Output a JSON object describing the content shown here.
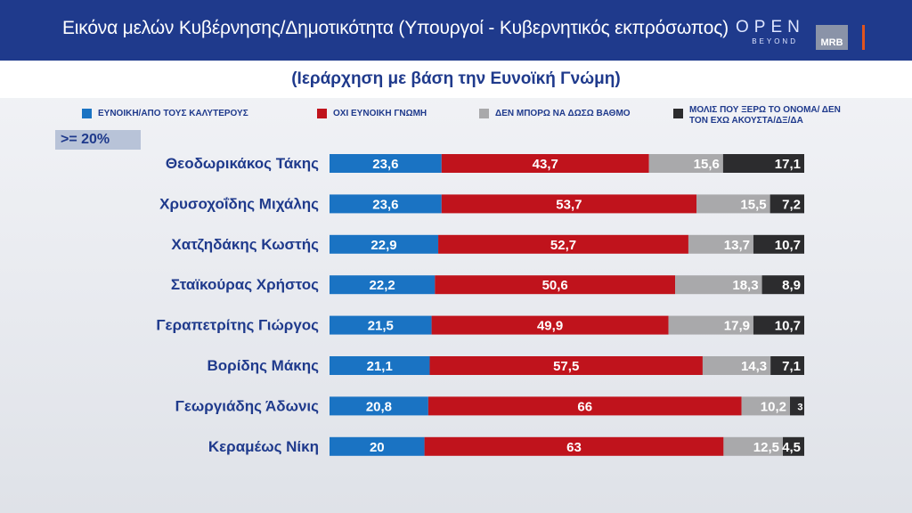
{
  "header": {
    "title": "Εικόνα μελών Κυβέρνησης/Δημοτικότητα (Υπουργοί - Κυβερνητικός εκπρόσωπος)",
    "logo_open": "OPEN",
    "logo_open_sub": "BEYOND",
    "logo_mrb": "MRB"
  },
  "subtitle": "(Ιεράρχηση με βάση την Ευνοϊκή Γνώμη)",
  "threshold": ">= 20%",
  "colors": {
    "favorable": "#1a73c3",
    "unfavorable": "#c0131c",
    "cannot_rate": "#a9a9ab",
    "unknown": "#2c2c2e"
  },
  "chart_data": {
    "type": "bar",
    "orientation": "horizontal",
    "stacked": true,
    "categories": [
      "Θεοδωρικάκος Τάκης",
      "Χρυσοχοΐδης Μιχάλης",
      "Χατζηδάκης Κωστής",
      "Σταϊκούρας Χρήστος",
      "Γεραπετρίτης Γιώργος",
      "Βορίδης Μάκης",
      "Γεωργιάδης Άδωνις",
      "Κεραμέως Νίκη"
    ],
    "series": [
      {
        "name": "ΕΥΝΟΙΚΗ/ΑΠΟ ΤΟΥΣ ΚΑΛΥΤΕΡΟΥΣ",
        "color": "#1a73c3",
        "values": [
          23.6,
          23.6,
          22.9,
          22.2,
          21.5,
          21.1,
          20.8,
          20
        ]
      },
      {
        "name": "ΟΧΙ ΕΥΝΟΙΚΗ ΓΝΩΜΗ",
        "color": "#c0131c",
        "values": [
          43.7,
          53.7,
          52.7,
          50.6,
          49.9,
          57.5,
          66,
          63
        ]
      },
      {
        "name": "ΔΕΝ ΜΠΟΡΩ ΝΑ ΔΩΣΩ ΒΑΘΜΟ",
        "color": "#a9a9ab",
        "values": [
          15.6,
          15.5,
          13.7,
          18.3,
          17.9,
          14.3,
          10.2,
          12.5
        ]
      },
      {
        "name": "ΜΟΛΙΣ ΠΟΥ ΞΕΡΩ ΤΟ ΟΝΟΜΑ/ ΔΕΝ ΤΟΝ ΕΧΩ ΑΚΟΥΣΤΑ/ΔΞ/ΔΑ",
        "color": "#2c2c2e",
        "values": [
          17.1,
          7.2,
          10.7,
          8.9,
          10.7,
          7.1,
          3,
          4.5
        ]
      }
    ],
    "value_labels": [
      [
        "23,6",
        "43,7",
        "15,6",
        "17,1"
      ],
      [
        "23,6",
        "53,7",
        "15,5",
        "7,2"
      ],
      [
        "22,9",
        "52,7",
        "13,7",
        "10,7"
      ],
      [
        "22,2",
        "50,6",
        "18,3",
        "8,9"
      ],
      [
        "21,5",
        "49,9",
        "17,9",
        "10,7"
      ],
      [
        "21,1",
        "57,5",
        "14,3",
        "7,1"
      ],
      [
        "20,8",
        "66",
        "10,2",
        "3"
      ],
      [
        "20",
        "63",
        "12,5",
        "4,5"
      ]
    ],
    "legend_position": "top",
    "grid": false
  }
}
